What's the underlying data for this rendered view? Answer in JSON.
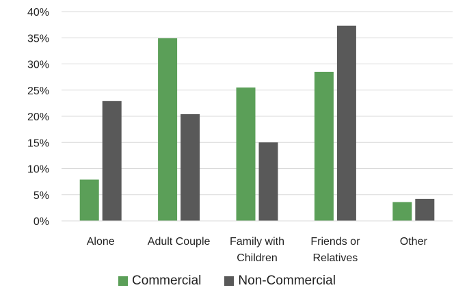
{
  "chart_data": {
    "type": "bar",
    "title": "",
    "xlabel": "",
    "ylabel": "",
    "categories": [
      "Alone",
      "Adult Couple",
      "Family with Children",
      "Friends or Relatives",
      "Other"
    ],
    "category_lines": [
      [
        "Alone"
      ],
      [
        "Adult Couple"
      ],
      [
        "Family with",
        "Children"
      ],
      [
        "Friends or",
        "Relatives"
      ],
      [
        "Other"
      ]
    ],
    "series": [
      {
        "name": "Commercial",
        "color": "#5B9F58",
        "values": [
          7.9,
          34.9,
          25.5,
          28.5,
          3.6
        ]
      },
      {
        "name": "Non-Commercial",
        "color": "#595959",
        "values": [
          22.9,
          20.4,
          15.0,
          37.3,
          4.2
        ]
      }
    ],
    "ylim": [
      0,
      40
    ],
    "y_ticks": [
      0,
      5,
      10,
      15,
      20,
      25,
      30,
      35,
      40
    ],
    "y_tick_labels": [
      "0%",
      "5%",
      "10%",
      "15%",
      "20%",
      "25%",
      "30%",
      "35%",
      "40%"
    ],
    "grid": true,
    "legend_position": "bottom"
  }
}
